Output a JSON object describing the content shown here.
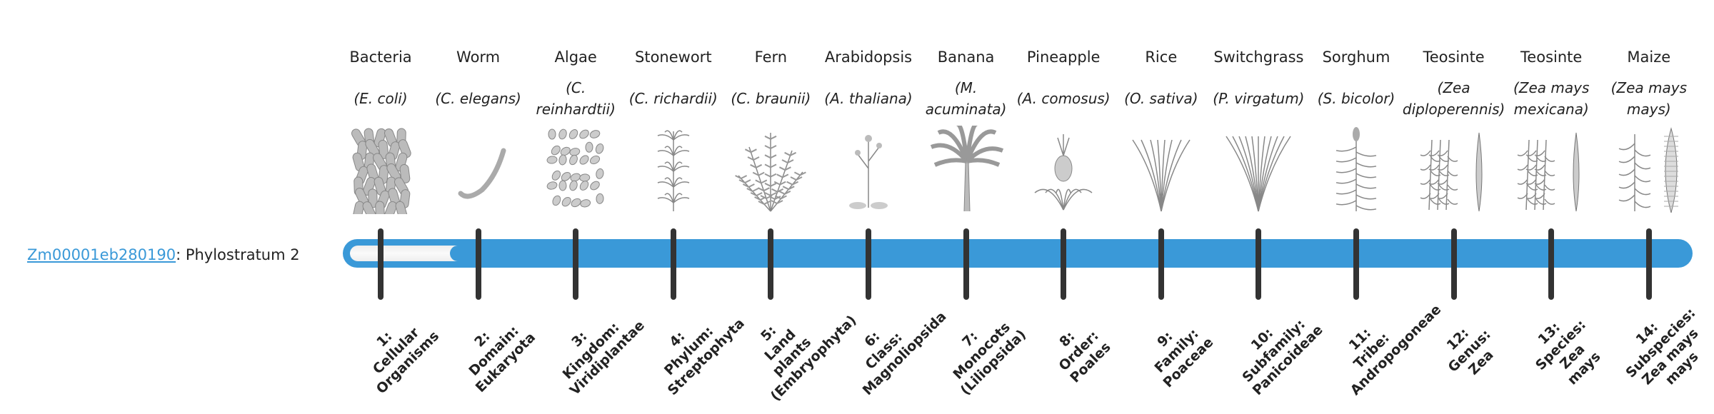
{
  "gene": {
    "id": "Zm00001eb280190",
    "suffix": ": Phylostratum 2"
  },
  "progress": {
    "phylostratum": 2,
    "total": 14,
    "bar_color": "#3a99d8",
    "tick_color": "#333333"
  },
  "strata": [
    {
      "common": "Bacteria",
      "latin": "(E. coli)",
      "icon": "bacteria",
      "rank": [
        "1:",
        "Cellular",
        "Organisms"
      ]
    },
    {
      "common": "Worm",
      "latin": "(C. elegans)",
      "icon": "worm",
      "rank": [
        "2:",
        "Domain:",
        "Eukaryota"
      ]
    },
    {
      "common": "Algae",
      "latin": "(C. reinhardtii)",
      "icon": "algae",
      "rank": [
        "3:",
        "Kingdom:",
        "Viridiplantae"
      ]
    },
    {
      "common": "Stonewort",
      "latin": "(C. richardii)",
      "icon": "stonewort",
      "rank": [
        "4:",
        "Phylum:",
        "Streptophyta"
      ]
    },
    {
      "common": "Fern",
      "latin": "(C. braunii)",
      "icon": "fern",
      "rank": [
        "5:",
        "Land plants",
        "(Embryophyta)"
      ]
    },
    {
      "common": "Arabidopsis",
      "latin": "(A. thaliana)",
      "icon": "arabidopsis",
      "rank": [
        "6:",
        "Class:",
        "Magnoliopsida"
      ]
    },
    {
      "common": "Banana",
      "latin": "(M. acuminata)",
      "icon": "banana",
      "rank": [
        "7:",
        "Monocots",
        "(Liliopsida)"
      ]
    },
    {
      "common": "Pineapple",
      "latin": "(A. comosus)",
      "icon": "pineapple",
      "rank": [
        "8:",
        "Order:",
        "Poales"
      ]
    },
    {
      "common": "Rice",
      "latin": "(O. sativa)",
      "icon": "rice",
      "rank": [
        "9:",
        "Family:",
        "Poaceae"
      ]
    },
    {
      "common": "Switchgrass",
      "latin": "(P. virgatum)",
      "icon": "switchgrass",
      "rank": [
        "10:",
        "Subfamily:",
        "Panicoideae"
      ]
    },
    {
      "common": "Sorghum",
      "latin": "(S. bicolor)",
      "icon": "sorghum",
      "rank": [
        "11:",
        "Tribe:",
        "Andropogoneae"
      ]
    },
    {
      "common": "Teosinte",
      "latin": "(Zea diploperennis)",
      "icon": "teosinte",
      "rank": [
        "12:",
        "Genus:",
        "Zea"
      ]
    },
    {
      "common": "Teosinte",
      "latin": "(Zea mays mexicana)",
      "icon": "teosinte",
      "rank": [
        "13:",
        "Species:",
        "Zea",
        "mays"
      ]
    },
    {
      "common": "Maize",
      "latin": "(Zea mays mays)",
      "icon": "maize",
      "rank": [
        "14:",
        "Subspecies:",
        "Zea mays",
        "mays"
      ]
    }
  ]
}
